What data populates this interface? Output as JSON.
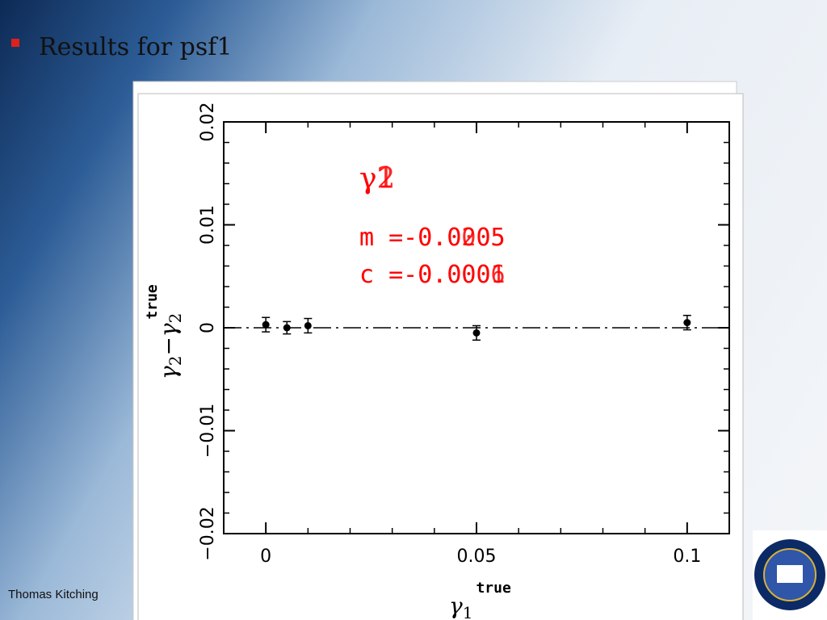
{
  "header": {
    "title": "Results for psf1"
  },
  "footer": {
    "author": "Thomas Kitching"
  },
  "chart_data": {
    "type": "scatter",
    "x": [
      0,
      0.005,
      0.01,
      0.05,
      0.1
    ],
    "series": [
      {
        "values": [
          0.0003,
          0.0,
          0.0002,
          -0.0005,
          0.0005
        ],
        "errors": [
          0.0007,
          0.0006,
          0.0007,
          0.0007,
          0.0007
        ],
        "color": "#000000"
      }
    ],
    "xlim": [
      -0.01,
      0.11
    ],
    "ylim": [
      -0.02,
      0.02
    ],
    "xticks": [
      0,
      0.05,
      0.1
    ],
    "yticks": [
      {
        "value": -0.02,
        "label": "−0.02"
      },
      {
        "value": -0.01,
        "label": "−0.01"
      },
      0,
      0.01,
      0.02
    ],
    "xlabel": {
      "symbol": "γ",
      "sub": "1",
      "sup": "true"
    },
    "ylabel": {
      "symbol": "γ",
      "sub": "2",
      "minus": "−γ",
      "sub2": "2",
      "sup": "true"
    },
    "annotations": [
      "γ1",
      "γ2",
      "m =-0.0205",
      "m =-0.0005",
      "c =-0.0001",
      "c =-0.0006"
    ],
    "annotation_color": "#ff0000"
  }
}
